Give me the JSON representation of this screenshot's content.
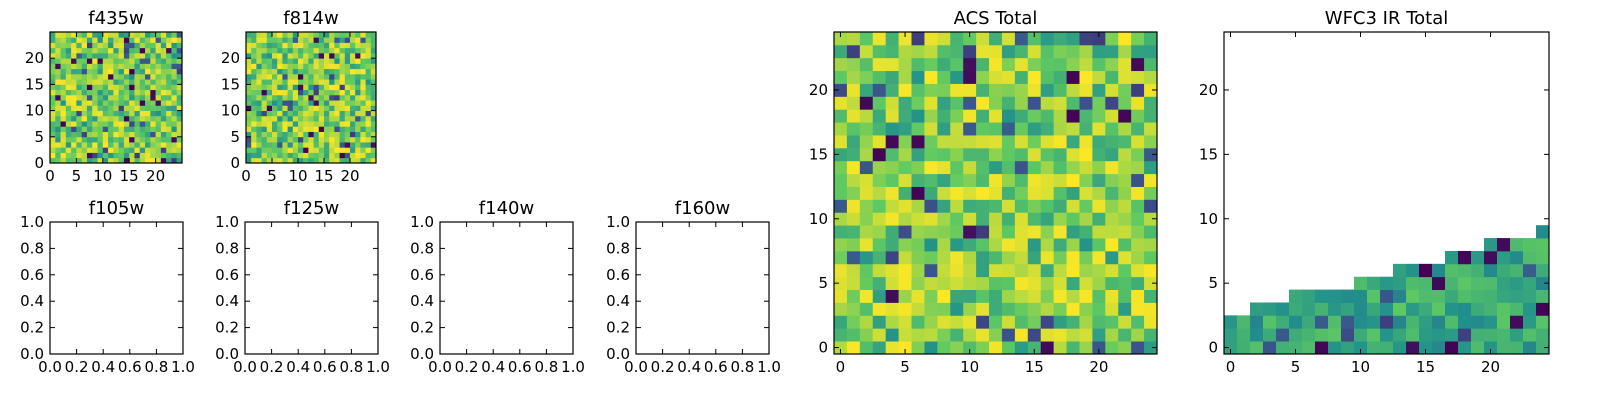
{
  "figure": {
    "panels": [
      {
        "key": "f435w",
        "title": "f435w",
        "kind": "heatmap"
      },
      {
        "key": "f814w",
        "title": "f814w",
        "kind": "heatmap"
      },
      {
        "key": "f105w",
        "title": "f105w",
        "kind": "empty"
      },
      {
        "key": "f125w",
        "title": "f125w",
        "kind": "empty"
      },
      {
        "key": "f140w",
        "title": "f140w",
        "kind": "empty"
      },
      {
        "key": "f160w",
        "title": "f160w",
        "kind": "empty"
      },
      {
        "key": "acs_total",
        "title": "ACS Total",
        "kind": "heatmap"
      },
      {
        "key": "wfc3_ir_total",
        "title": "WFC3 IR Total",
        "kind": "heatmap"
      }
    ]
  },
  "chart_data": [
    {
      "type": "heatmap",
      "title": "f435w",
      "xlim": [
        0,
        25
      ],
      "ylim": [
        0,
        25
      ],
      "xticks": [
        0,
        5,
        10,
        15,
        20
      ],
      "yticks": [
        0,
        5,
        10,
        15,
        20
      ],
      "grid_size": [
        25,
        25
      ],
      "colormap": "viridis",
      "fill": "random-dense"
    },
    {
      "type": "heatmap",
      "title": "f814w",
      "xlim": [
        0,
        25
      ],
      "ylim": [
        0,
        25
      ],
      "xticks": [
        0,
        5,
        10,
        15,
        20
      ],
      "yticks": [
        0,
        5,
        10,
        15,
        20
      ],
      "grid_size": [
        25,
        25
      ],
      "colormap": "viridis",
      "fill": "random-dense"
    },
    {
      "type": "empty",
      "title": "f105w",
      "xlim": [
        0,
        1
      ],
      "ylim": [
        0,
        1
      ],
      "xticks": [
        "0.0",
        "0.2",
        "0.4",
        "0.6",
        "0.8",
        "1.0"
      ],
      "yticks": [
        "0.0",
        "0.2",
        "0.4",
        "0.6",
        "0.8",
        "1.0"
      ]
    },
    {
      "type": "empty",
      "title": "f125w",
      "xlim": [
        0,
        1
      ],
      "ylim": [
        0,
        1
      ],
      "xticks": [
        "0.0",
        "0.2",
        "0.4",
        "0.6",
        "0.8",
        "1.0"
      ],
      "yticks": [
        "0.0",
        "0.2",
        "0.4",
        "0.6",
        "0.8",
        "1.0"
      ]
    },
    {
      "type": "empty",
      "title": "f140w",
      "xlim": [
        0,
        1
      ],
      "ylim": [
        0,
        1
      ],
      "xticks": [
        "0.0",
        "0.2",
        "0.4",
        "0.6",
        "0.8",
        "1.0"
      ],
      "yticks": [
        "0.0",
        "0.2",
        "0.4",
        "0.6",
        "0.8",
        "1.0"
      ]
    },
    {
      "type": "empty",
      "title": "f160w",
      "xlim": [
        0,
        1
      ],
      "ylim": [
        0,
        1
      ],
      "xticks": [
        "0.0",
        "0.2",
        "0.4",
        "0.6",
        "0.8",
        "1.0"
      ],
      "yticks": [
        "0.0",
        "0.2",
        "0.4",
        "0.6",
        "0.8",
        "1.0"
      ]
    },
    {
      "type": "heatmap",
      "title": "ACS Total",
      "xlim": [
        -0.5,
        24.5
      ],
      "ylim": [
        -0.5,
        24.5
      ],
      "xticks": [
        0,
        5,
        10,
        15,
        20
      ],
      "yticks": [
        0,
        5,
        10,
        15,
        20
      ],
      "grid_size": [
        25,
        25
      ],
      "colormap": "viridis",
      "fill": "random-dense"
    },
    {
      "type": "heatmap",
      "title": "WFC3 IR Total",
      "xlim": [
        -0.5,
        24.5
      ],
      "ylim": [
        -0.5,
        24.5
      ],
      "xticks": [
        0,
        5,
        10,
        15,
        20
      ],
      "yticks": [
        0,
        5,
        10,
        15,
        20
      ],
      "grid_size": [
        25,
        25
      ],
      "colormap": "viridis",
      "fill": "partial-lower-region",
      "filled_top_row_by_column": [
        2,
        2,
        3,
        3,
        3,
        4,
        4,
        4,
        4,
        4,
        5,
        5,
        5,
        6,
        6,
        6,
        6,
        7,
        7,
        7,
        8,
        8,
        8,
        8,
        9
      ]
    }
  ]
}
